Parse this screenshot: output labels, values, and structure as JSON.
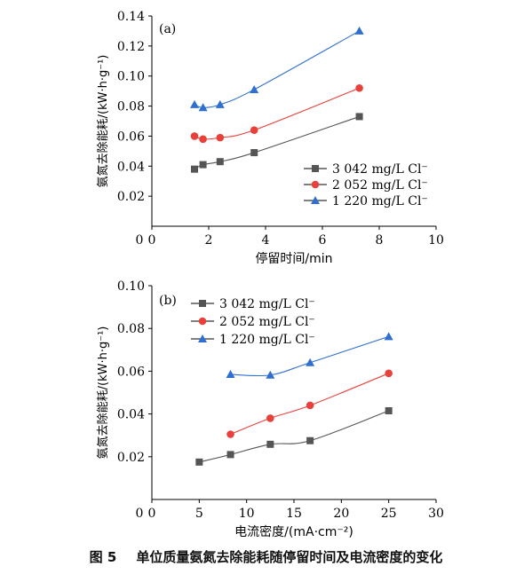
{
  "caption": {
    "figure_number": "图 5",
    "title": "单位质量氨氮去除能耗随停留时间及电流密度的变化"
  },
  "colors": {
    "series_1": "#555555",
    "series_2": "#e8403a",
    "series_3": "#2f6fd0",
    "axis": "#000000"
  },
  "chart_data": [
    {
      "type": "line",
      "panel_label": "(a)",
      "xlabel": "停留时间/min",
      "ylabel": "氨氮去除能耗/(kW·h·g⁻¹)",
      "xlim": [
        0,
        10
      ],
      "ylim": [
        0,
        0.14
      ],
      "xticks": [
        0,
        2,
        4,
        6,
        8,
        10
      ],
      "yticks": [
        0.02,
        0.04,
        0.06,
        0.08,
        0.1,
        0.12,
        0.14
      ],
      "ytick_labels": [
        "0.02",
        "0.04",
        "0.06",
        "0.08",
        "0.10",
        "0.12",
        "0.14"
      ],
      "grid": false,
      "legend_position": "lower-right",
      "series": [
        {
          "name": "3 042 mg/L Cl⁻",
          "marker": "square",
          "color": "#555555",
          "x": [
            1.5,
            1.8,
            2.4,
            3.6,
            7.3
          ],
          "y": [
            0.038,
            0.041,
            0.043,
            0.049,
            0.073
          ]
        },
        {
          "name": "2 052 mg/L Cl⁻",
          "marker": "circle",
          "color": "#e8403a",
          "x": [
            1.5,
            1.8,
            2.4,
            3.6,
            7.3
          ],
          "y": [
            0.06,
            0.058,
            0.059,
            0.064,
            0.092
          ]
        },
        {
          "name": "1 220 mg/L Cl⁻",
          "marker": "triangle",
          "color": "#2f6fd0",
          "x": [
            1.5,
            1.8,
            2.4,
            3.6,
            7.3
          ],
          "y": [
            0.081,
            0.079,
            0.081,
            0.091,
            0.13
          ]
        }
      ]
    },
    {
      "type": "line",
      "panel_label": "(b)",
      "xlabel": "电流密度/(mA·cm⁻²)",
      "ylabel": "氨氮去除能耗/(kW·h·g⁻¹)",
      "xlim": [
        0,
        30
      ],
      "ylim": [
        0,
        0.1
      ],
      "xticks": [
        0,
        5,
        10,
        15,
        20,
        25,
        30
      ],
      "yticks": [
        0.02,
        0.04,
        0.06,
        0.08,
        0.1
      ],
      "ytick_labels": [
        "0.02",
        "0.04",
        "0.06",
        "0.08",
        "0.10"
      ],
      "grid": false,
      "legend_position": "top-left",
      "series": [
        {
          "name": "3 042 mg/L Cl⁻",
          "marker": "square",
          "color": "#555555",
          "x": [
            5,
            8.3,
            12.5,
            16.7,
            25
          ],
          "y": [
            0.0175,
            0.021,
            0.0258,
            0.0275,
            0.0415
          ]
        },
        {
          "name": "2 052 mg/L Cl⁻",
          "marker": "circle",
          "color": "#e8403a",
          "x": [
            8.3,
            12.5,
            16.7,
            25
          ],
          "y": [
            0.0305,
            0.038,
            0.044,
            0.059
          ]
        },
        {
          "name": "1 220 mg/L Cl⁻",
          "marker": "triangle",
          "color": "#2f6fd0",
          "x": [
            8.3,
            12.5,
            16.7,
            25
          ],
          "y": [
            0.0585,
            0.0582,
            0.064,
            0.0762
          ]
        }
      ]
    }
  ]
}
